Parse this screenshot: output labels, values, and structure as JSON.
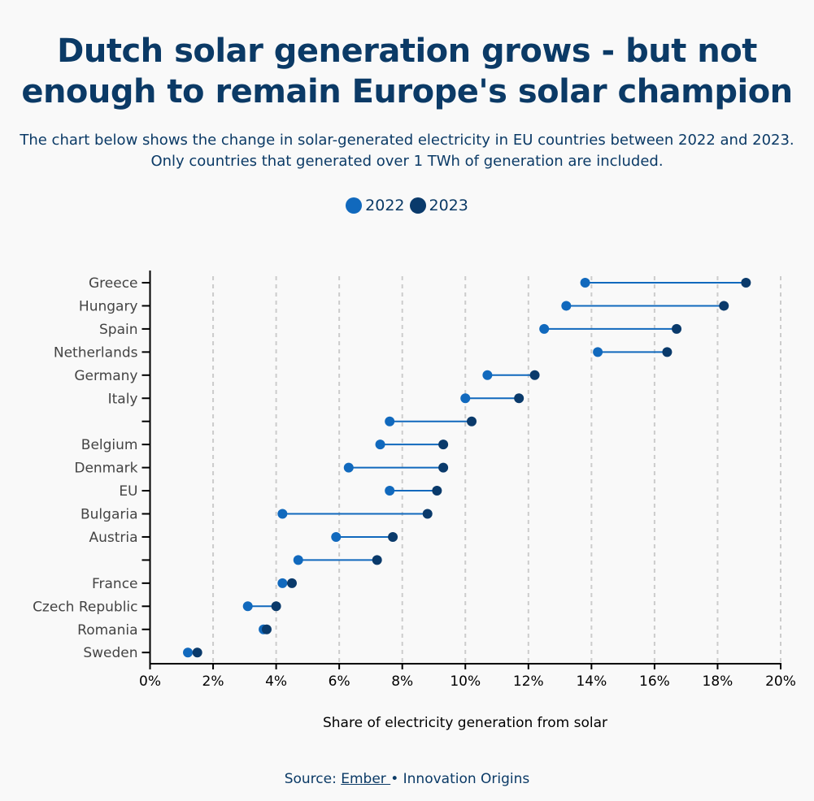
{
  "header": {
    "title": "Dutch solar generation grows - but not enough to remain Europe's solar champion",
    "subtitle": "The chart below shows the change in solar-generated electricity in EU countries between 2022 and 2023. Only countries that generated over 1 TWh of generation are included."
  },
  "legend": [
    {
      "label": "2022",
      "color": "#1169bd"
    },
    {
      "label": "2023",
      "color": "#0a3a6b"
    }
  ],
  "footer": {
    "source_prefix": "Source: ",
    "source_link": "Ember ",
    "separator": "•",
    "publisher": "Innovation Origins"
  },
  "chart_data": {
    "type": "dumbbell",
    "title": "Dutch solar generation grows - but not enough to remain Europe's solar champion",
    "xlabel": "Share of electricity generation from solar",
    "ylabel": "",
    "xlim": [
      0,
      20
    ],
    "x_unit": "%",
    "x_ticks": [
      0,
      2,
      4,
      6,
      8,
      10,
      12,
      14,
      16,
      18,
      20
    ],
    "x_tick_labels": [
      "0%",
      "2%",
      "4%",
      "6%",
      "8%",
      "10%",
      "12%",
      "14%",
      "16%",
      "18%",
      "20%"
    ],
    "grid": "vertical dashed",
    "legend_position": "top-center",
    "series_names": [
      "2022",
      "2023"
    ],
    "colors": {
      "2022": "#1169bd",
      "2023": "#0a3a6b",
      "connector": "#1169bd",
      "grid": "#cccccc",
      "axis": "#000000"
    },
    "categories": [
      "Greece",
      "Hungary",
      "Spain",
      "Netherlands",
      "Germany",
      "Italy",
      "",
      "Belgium",
      "Denmark",
      "EU",
      "Bulgaria",
      "Austria",
      "",
      "France",
      "Czech Republic",
      "Romania",
      "Sweden"
    ],
    "series": [
      {
        "name": "2022",
        "values": [
          13.8,
          13.2,
          12.5,
          14.2,
          10.7,
          10.0,
          7.6,
          7.3,
          6.3,
          7.6,
          4.2,
          5.9,
          4.7,
          4.2,
          3.1,
          3.6,
          1.2
        ]
      },
      {
        "name": "2023",
        "values": [
          18.9,
          18.2,
          16.7,
          16.4,
          12.2,
          11.7,
          10.2,
          9.3,
          9.3,
          9.1,
          8.8,
          7.7,
          7.2,
          4.5,
          4.0,
          3.7,
          1.5
        ]
      }
    ]
  }
}
